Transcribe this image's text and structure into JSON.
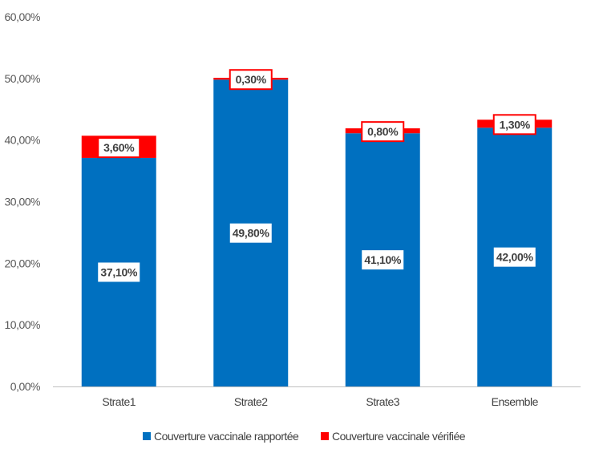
{
  "chart_data": {
    "type": "bar",
    "stacked": true,
    "categories": [
      "Strate1",
      "Strate2",
      "Strate3",
      "Ensemble"
    ],
    "series": [
      {
        "name": "Couverture vaccinale rapportée",
        "color": "#0070C0",
        "values": [
          37.1,
          49.8,
          41.1,
          42.0
        ],
        "labels": [
          "37,10%",
          "49,80%",
          "41,10%",
          "42,00%"
        ]
      },
      {
        "name": "Couverture vaccinale vérifiée",
        "color": "#FF0000",
        "values": [
          3.6,
          0.3,
          0.8,
          1.3
        ],
        "labels": [
          "3,60%",
          "0,30%",
          "0,80%",
          "1,30%"
        ]
      }
    ],
    "ylim": [
      0,
      60
    ],
    "yticks": [
      0,
      10,
      20,
      30,
      40,
      50,
      60
    ],
    "ytick_labels": [
      "0,00%",
      "10,00%",
      "20,00%",
      "30,00%",
      "40,00%",
      "50,00%",
      "60,00%"
    ],
    "legend_position": "bottom",
    "grid": false
  }
}
